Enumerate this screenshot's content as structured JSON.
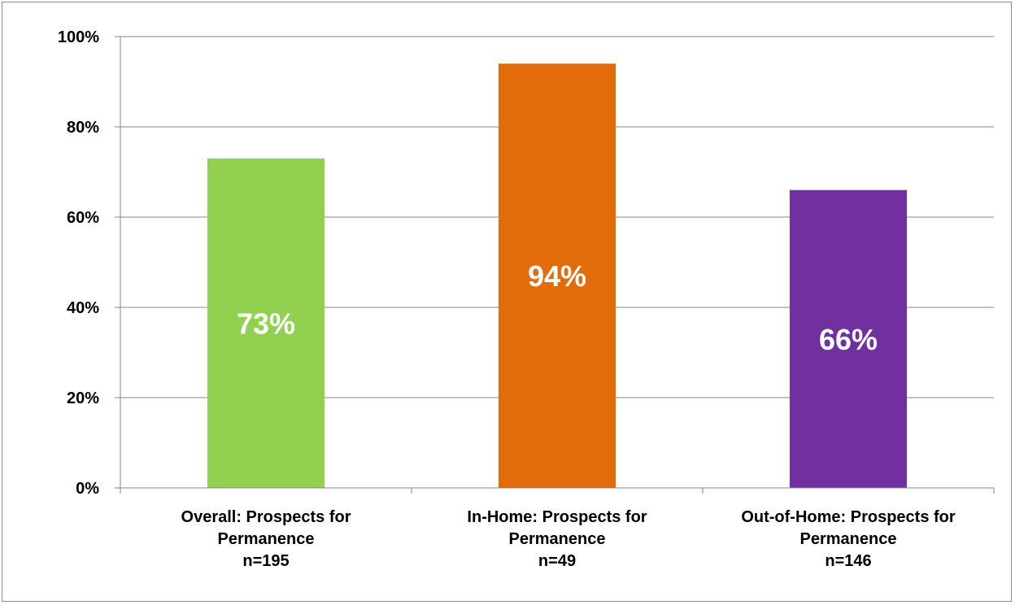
{
  "chart_data": {
    "type": "bar",
    "categories": [
      {
        "lines": [
          "Overall: Prospects for",
          "Permanence",
          "n=195"
        ]
      },
      {
        "lines": [
          "In-Home: Prospects for",
          "Permanence",
          "n=49"
        ]
      },
      {
        "lines": [
          "Out-of-Home: Prospects for",
          "Permanence",
          "n=146"
        ]
      }
    ],
    "values": [
      73,
      94,
      66
    ],
    "data_labels": [
      "73%",
      "94%",
      "66%"
    ],
    "colors": [
      "#92d050",
      "#e36c0a",
      "#7030a0"
    ],
    "ylim": [
      0,
      100
    ],
    "yticks": [
      0,
      20,
      40,
      60,
      80,
      100
    ],
    "ytick_labels": [
      "0%",
      "20%",
      "40%",
      "60%",
      "80%",
      "100%"
    ],
    "grid": true,
    "grid_color": "#868686",
    "title": "",
    "xlabel": "",
    "ylabel": ""
  }
}
